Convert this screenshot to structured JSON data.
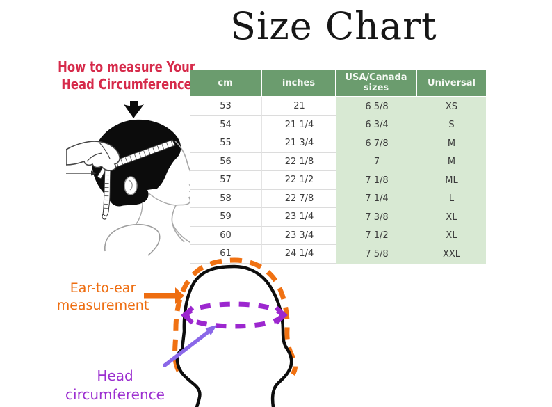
{
  "page": {
    "background": "#ffffff"
  },
  "title": "Size Chart",
  "measure_heading": {
    "line1": "How to measure Your",
    "line2": "Head Circumference",
    "color": "#d62b4b"
  },
  "chart_data": {
    "type": "table",
    "title": "Size Chart",
    "columns": [
      "cm",
      "inches",
      "USA/Canada sizes",
      "Universal"
    ],
    "rows": [
      [
        "53",
        "21",
        "6 5/8",
        "XS"
      ],
      [
        "54",
        "21 1/4",
        "6 3/4",
        "S"
      ],
      [
        "55",
        "21 3/4",
        "6 7/8",
        "M"
      ],
      [
        "56",
        "22 1/8",
        "7",
        "M"
      ],
      [
        "57",
        "22 1/2",
        "7 1/8",
        "ML"
      ],
      [
        "58",
        "22 7/8",
        "7 1/4",
        "L"
      ],
      [
        "59",
        "23 1/4",
        "7 3/8",
        "XL"
      ],
      [
        "60",
        "23 3/4",
        "7 1/2",
        "XL"
      ],
      [
        "61",
        "24 1/4",
        "7 5/8",
        "XXL"
      ]
    ],
    "layout": {
      "header_bg": "#6b9c6e",
      "header_text_color": "#ffffff",
      "highlight_bg": "#d8e9d3",
      "highlighted_columns": [
        "USA/Canada sizes",
        "Universal"
      ]
    }
  },
  "annotations": {
    "ear_to_ear": {
      "line1": "Ear-to-ear",
      "line2": "measurement",
      "color": "#ee6d10"
    },
    "head_circumference": {
      "line1": "Head",
      "line2": "circumference",
      "color": "#9c2fd0"
    }
  },
  "icons": {
    "down_arrow": "solid black arrow pointing down at profile head",
    "tape_pointer_arrow": "thin black arrow pointing right at tape junction",
    "ear_to_ear_arrow": "thick orange arrow pointing right at head outline",
    "circumference_arrow": "violet arrow pointing up-right at dashed circumference line"
  },
  "illustrations": {
    "profile_head": "side profile of a head with a hand holding a measuring tape wrapped around the head",
    "front_head": "front-facing head outline with orange dashed ear-to-ear arc and purple dashed circumference ellipse"
  }
}
